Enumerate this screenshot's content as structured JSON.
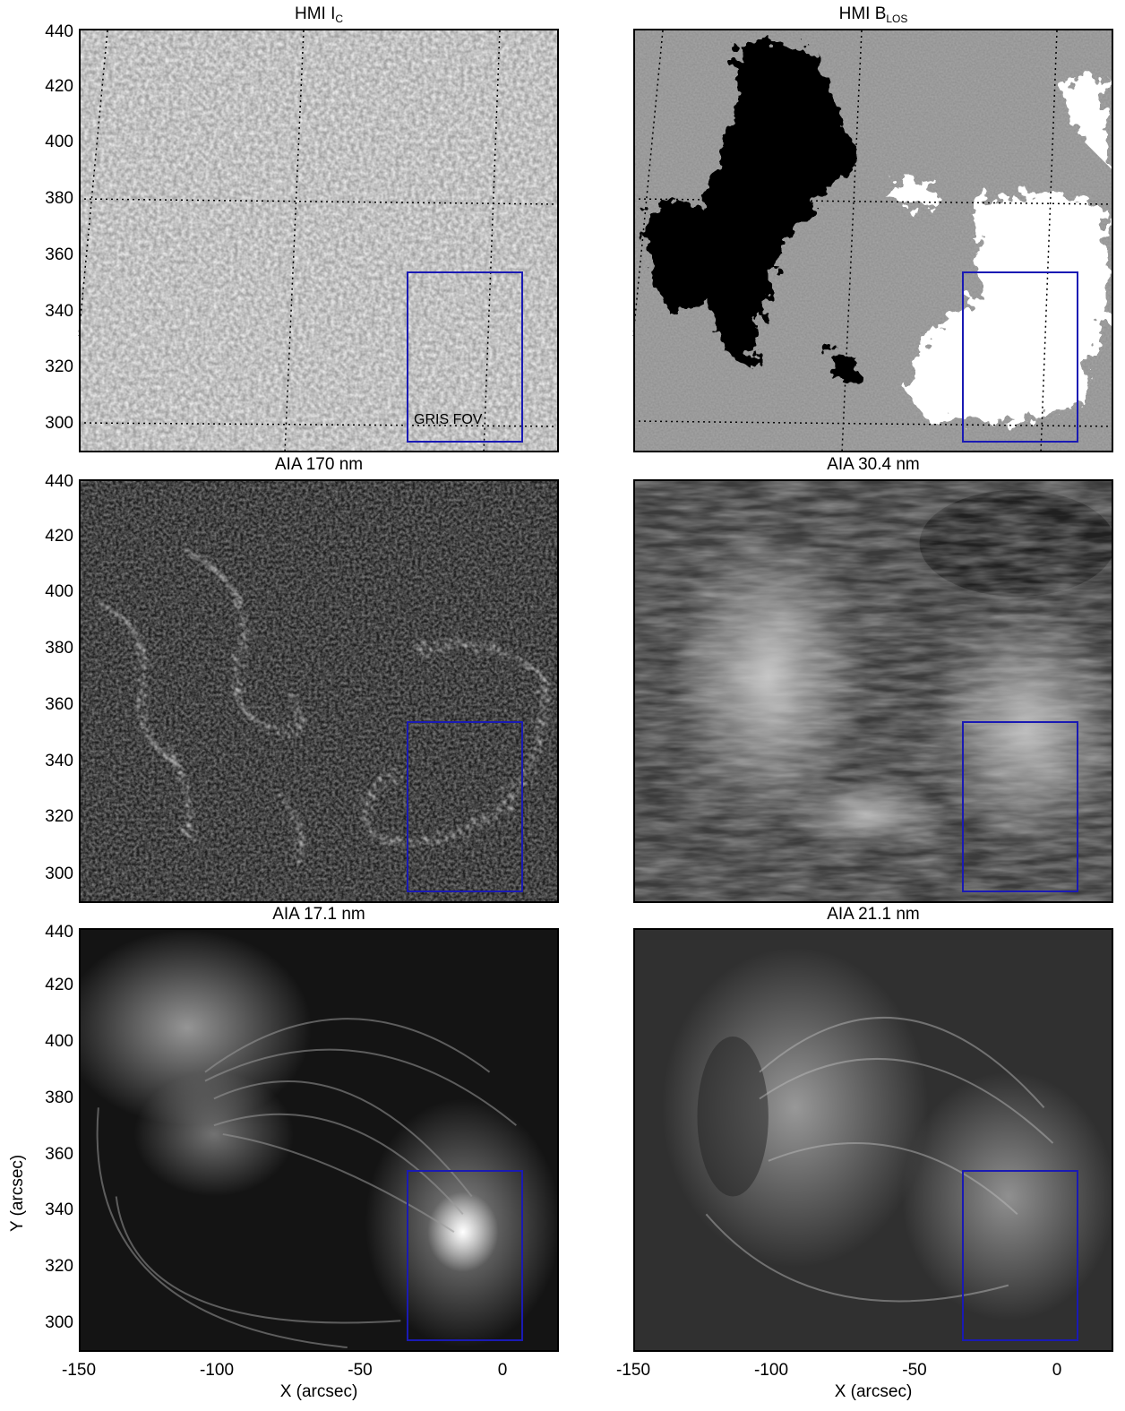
{
  "panels": [
    {
      "title_main": "HMI I",
      "title_sub": "C"
    },
    {
      "title_main": "HMI B",
      "title_sub": "LOS"
    },
    {
      "title_main": "AIA 170 nm",
      "title_sub": ""
    },
    {
      "title_main": "AIA 30.4 nm",
      "title_sub": ""
    },
    {
      "title_main": "AIA 17.1 nm",
      "title_sub": ""
    },
    {
      "title_main": "AIA 21.1 nm",
      "title_sub": ""
    }
  ],
  "axes": {
    "y_ticks": [
      "440",
      "420",
      "400",
      "380",
      "360",
      "340",
      "320",
      "300"
    ],
    "x_ticks": [
      "-150",
      "-100",
      "-50",
      "0"
    ],
    "xlabel": "X (arcsec)",
    "ylabel": "Y (arcsec)",
    "xlim": [
      -150,
      20
    ],
    "ylim": [
      290,
      442
    ]
  },
  "fov_label": "GRIS FOV",
  "fov_box": {
    "x": [
      -33,
      7
    ],
    "y": [
      294,
      354
    ]
  },
  "colors": {
    "fov_box": "#1a1ab4",
    "grid": "#000000"
  }
}
